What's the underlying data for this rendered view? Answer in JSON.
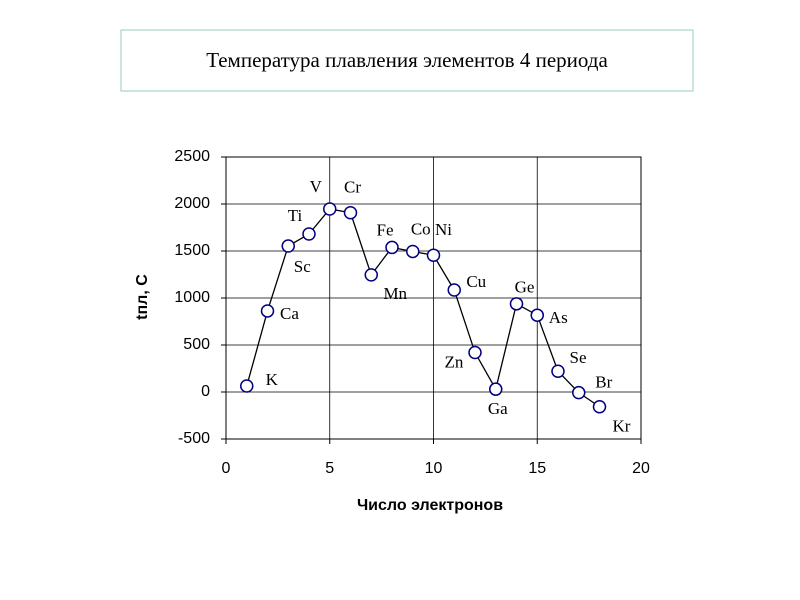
{
  "chart_data": {
    "type": "line",
    "title": "Температура плавления элементов 4 периода",
    "x_label": "Число электронов",
    "y_label": "tпл, С",
    "x": [
      1,
      2,
      3,
      4,
      5,
      6,
      7,
      8,
      9,
      10,
      11,
      12,
      13,
      14,
      15,
      16,
      17,
      18
    ],
    "values": [
      64,
      862,
      1553,
      1681,
      1947,
      1907,
      1246,
      1538,
      1495,
      1455,
      1085,
      420,
      30,
      938,
      817,
      221,
      -7,
      -157
    ],
    "point_labels": [
      "K",
      "Ca",
      "Sc",
      "Ti",
      "V",
      "Cr",
      "Mn",
      "Fe",
      "Co",
      "Ni",
      "Cu",
      "Zn",
      "Ga",
      "Ge",
      "As",
      "Se",
      "Br",
      "Kr"
    ],
    "color": "#000000",
    "marker_color": "#000080",
    "xlim": [
      0,
      20
    ],
    "xticks": [
      0,
      5,
      10,
      15,
      20
    ],
    "ylim": [
      -500,
      2500
    ],
    "yticks": [
      -500,
      0,
      500,
      1000,
      1500,
      2000,
      2500
    ],
    "grid": true
  }
}
